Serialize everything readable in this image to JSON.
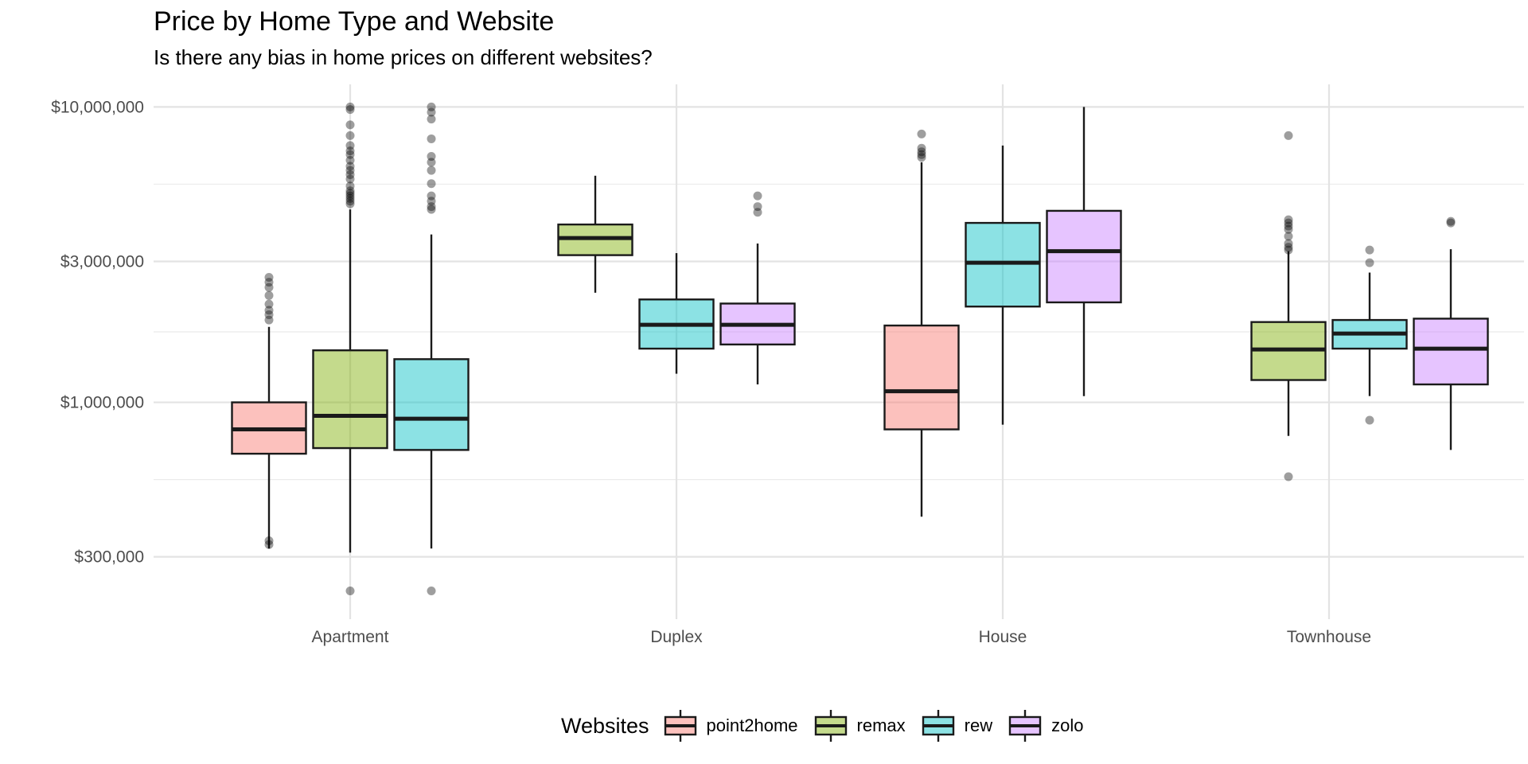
{
  "chart_data": {
    "type": "boxplot",
    "title": "Price by Home Type and Website",
    "subtitle": "Is there any bias in home prices on different websites?",
    "xlabel": "",
    "ylabel": "",
    "y_scale": "log10",
    "ylim": [
      200000,
      12000000
    ],
    "y_ticks": [
      300000,
      1000000,
      3000000,
      10000000
    ],
    "y_tick_labels": [
      "$300,000",
      "$1,000,000",
      "$3,000,000",
      "$10,000,000"
    ],
    "categories": [
      "Apartment",
      "Duplex",
      "House",
      "Townhouse"
    ],
    "legend": {
      "title": "Websites",
      "position": "bottom"
    },
    "grid": true,
    "series": [
      {
        "name": "point2home",
        "color": "#F8766D",
        "boxes": [
          {
            "category": "Apartment",
            "lower_whisker": 320000,
            "q1": 670000,
            "median": 810000,
            "q3": 1000000,
            "upper_whisker": 1800000,
            "outliers": [
              2650000,
              2550000,
              2450000,
              2300000,
              2150000,
              2050000,
              1980000,
              1900000,
              340000,
              330000
            ]
          },
          {
            "category": "House",
            "lower_whisker": 410000,
            "q1": 810000,
            "median": 1090000,
            "q3": 1820000,
            "upper_whisker": 6500000,
            "outliers": [
              8100000,
              7250000,
              7050000,
              6900000,
              6750000
            ]
          },
          {
            "category": "Townhouse",
            "outliers": []
          }
        ]
      },
      {
        "name": "remax",
        "color": "#7CAE00",
        "boxes": [
          {
            "category": "Apartment",
            "lower_whisker": 310000,
            "q1": 700000,
            "median": 900000,
            "q3": 1500000,
            "upper_whisker": 4500000,
            "outliers": [
              230000,
              10000000,
              9800000,
              8700000,
              8000000,
              7400000,
              7100000,
              6900000,
              6600000,
              6300000,
              6100000,
              5900000,
              5700000,
              5400000,
              5200000,
              5100000,
              5000000,
              4900000,
              4800000,
              4700000
            ]
          },
          {
            "category": "Duplex",
            "lower_whisker": 2350000,
            "q1": 3150000,
            "median": 3600000,
            "q3": 4000000,
            "upper_whisker": 5850000,
            "outliers": []
          },
          {
            "category": "Townhouse",
            "lower_whisker": 770000,
            "q1": 1190000,
            "median": 1510000,
            "q3": 1870000,
            "upper_whisker": 3250000,
            "outliers": [
              560000,
              8000000,
              4150000,
              4050000,
              3950000,
              3850000,
              3650000,
              3450000,
              3350000,
              3280000
            ]
          }
        ]
      },
      {
        "name": "rew",
        "color": "#00BFC4",
        "boxes": [
          {
            "category": "Apartment",
            "lower_whisker": 320000,
            "q1": 690000,
            "median": 880000,
            "q3": 1400000,
            "upper_whisker": 3700000,
            "outliers": [
              230000,
              10000000,
              9600000,
              9100000,
              7800000,
              6800000,
              6500000,
              6100000,
              5500000,
              5000000,
              4800000,
              4600000,
              4500000
            ]
          },
          {
            "category": "Duplex",
            "lower_whisker": 1250000,
            "q1": 1520000,
            "median": 1830000,
            "q3": 2230000,
            "upper_whisker": 3200000,
            "outliers": []
          },
          {
            "category": "House",
            "lower_whisker": 840000,
            "q1": 2110000,
            "median": 2970000,
            "q3": 4050000,
            "upper_whisker": 7400000,
            "outliers": []
          },
          {
            "category": "Townhouse",
            "lower_whisker": 1050000,
            "q1": 1520000,
            "median": 1710000,
            "q3": 1900000,
            "upper_whisker": 2750000,
            "outliers": [
              870000,
              3280000,
              2970000
            ]
          }
        ]
      },
      {
        "name": "zolo",
        "color": "#C77CFF",
        "boxes": [
          {
            "category": "Duplex",
            "lower_whisker": 1150000,
            "q1": 1570000,
            "median": 1830000,
            "q3": 2160000,
            "upper_whisker": 3450000,
            "outliers": [
              5000000,
              4600000,
              4400000
            ]
          },
          {
            "category": "House",
            "lower_whisker": 1050000,
            "q1": 2180000,
            "median": 3250000,
            "q3": 4450000,
            "upper_whisker": 10000000,
            "outliers": []
          },
          {
            "category": "Townhouse",
            "lower_whisker": 690000,
            "q1": 1150000,
            "median": 1520000,
            "q3": 1920000,
            "upper_whisker": 3300000,
            "outliers": [
              4100000,
              4050000
            ]
          }
        ]
      }
    ]
  }
}
